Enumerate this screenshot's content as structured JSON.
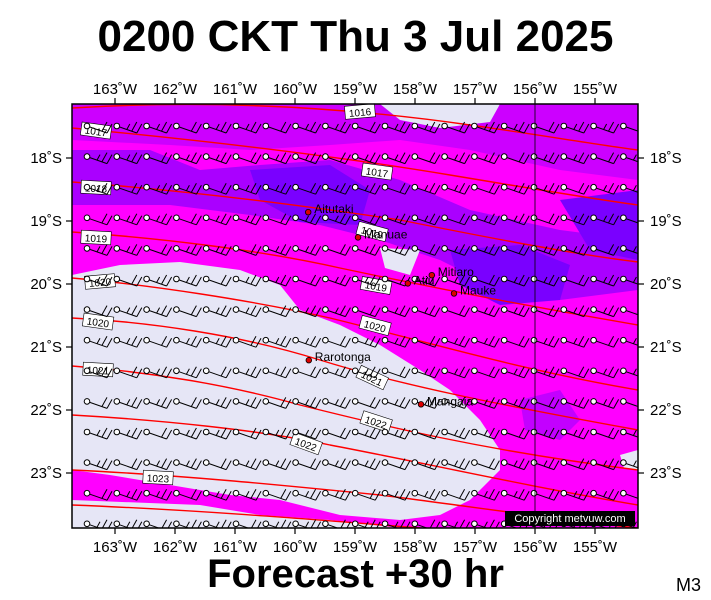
{
  "title": "0200 CKT Thu 3 Jul 2025",
  "footer": "Forecast +30 hr",
  "code": "M3",
  "copyright": "Copyright metvuw.com",
  "lon_labels": [
    "163˚W",
    "162˚W",
    "161˚W",
    "160˚W",
    "159˚W",
    "158˚W",
    "157˚W",
    "156˚W",
    "155˚W"
  ],
  "lat_labels": [
    "18˚S",
    "19˚S",
    "20˚S",
    "21˚S",
    "22˚S",
    "23˚S"
  ],
  "places": [
    {
      "name": "Aitutaki",
      "lon": -159.78,
      "lat": -18.86
    },
    {
      "name": "Manuae",
      "lon": -158.95,
      "lat": -19.26
    },
    {
      "name": "Atiu",
      "lon": -158.12,
      "lat": -19.99
    },
    {
      "name": "Mitiaro",
      "lon": -157.72,
      "lat": -19.86
    },
    {
      "name": "Mauke",
      "lon": -157.35,
      "lat": -20.15
    },
    {
      "name": "Rarotonga",
      "lon": -159.77,
      "lat": -21.21
    },
    {
      "name": "Mangaia",
      "lon": -157.9,
      "lat": -21.91
    }
  ],
  "isobar_labels": [
    "1016",
    "1017",
    "1017",
    "1018",
    "1019",
    "1019",
    "1019",
    "1020",
    "1020",
    "1020",
    "1021",
    "1021",
    "1022",
    "1022",
    "1023",
    "1024"
  ],
  "colors": {
    "rain_light": "#e6e6f6",
    "rain_mid": "#ff00ff",
    "rain_heavy": "#aa00ff",
    "rain_max": "#7a00ff",
    "isobar": "#ff0000",
    "place_dot": "#dd0000"
  }
}
